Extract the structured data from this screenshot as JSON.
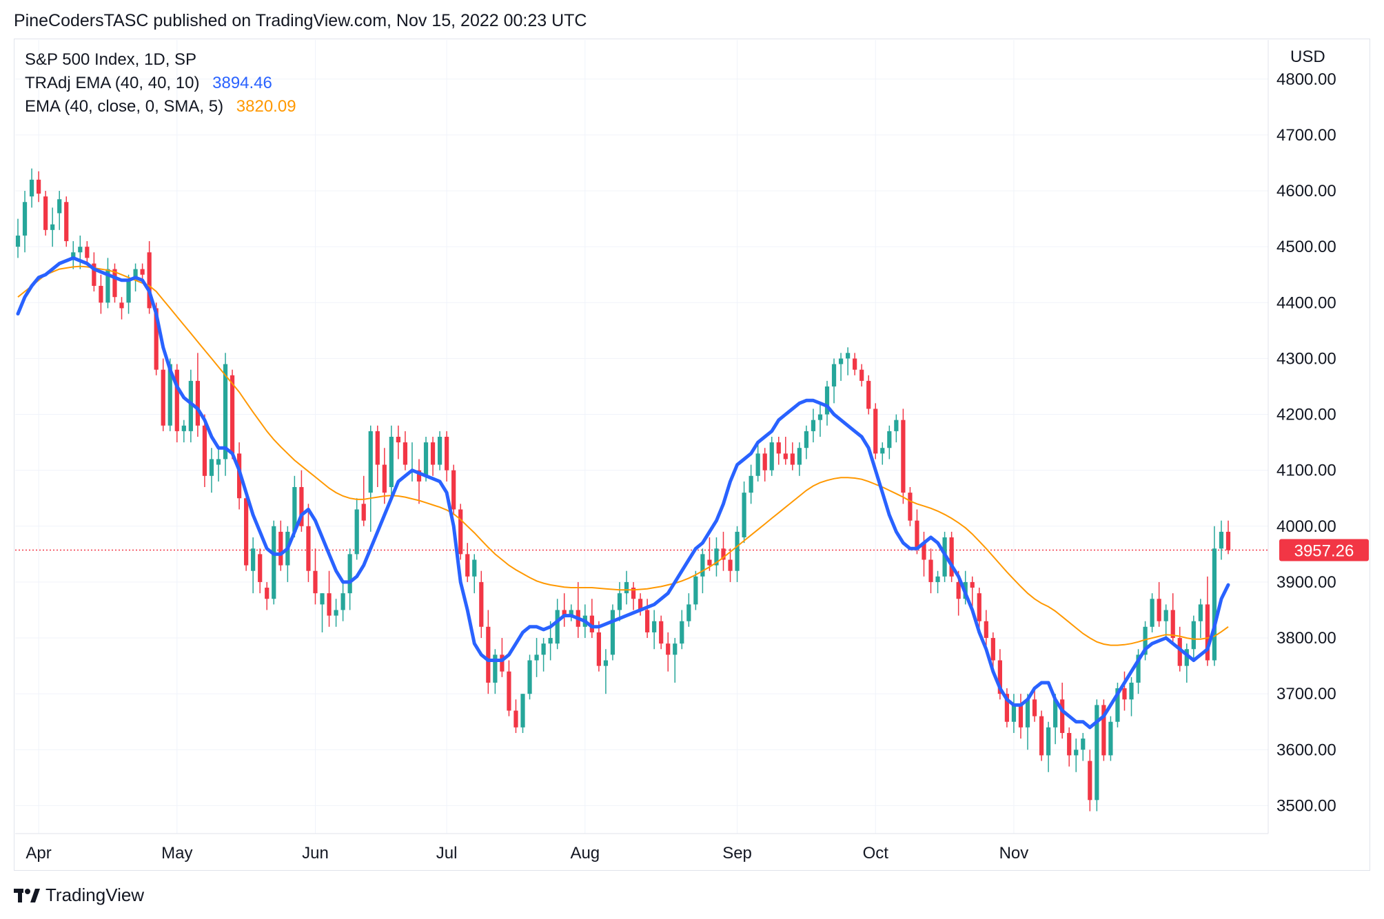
{
  "header": {
    "text": "PineCodersTASC published on TradingView.com, Nov 15, 2022 00:23 UTC"
  },
  "legend": {
    "symbol": "S&P 500 Index, 1D, SP",
    "indicator1_label": "TRAdj EMA (40, 40, 10)",
    "indicator1_value": "3894.46",
    "indicator2_label": "EMA (40, close, 0, SMA, 5)",
    "indicator2_value": "3820.09"
  },
  "footer": {
    "brand": "TradingView",
    "icon": "tradingview-logo-icon"
  },
  "colors": {
    "up": "#26a69a",
    "down": "#f23645",
    "tradj": "#2962ff",
    "ema": "#ff9800",
    "grid": "#f0f3fa",
    "text": "#131722",
    "price_line": "#f23645"
  },
  "chart_data": {
    "type": "candlestick",
    "currency": "USD",
    "ylim": [
      3450,
      4870
    ],
    "y_ticks": [
      "4800.00",
      "4700.00",
      "4600.00",
      "4500.00",
      "4400.00",
      "4300.00",
      "4200.00",
      "4100.00",
      "4000.00",
      "3900.00",
      "3800.00",
      "3700.00",
      "3600.00",
      "3500.00"
    ],
    "x_ticks": [
      {
        "label": "Apr",
        "index": 3
      },
      {
        "label": "May",
        "index": 23
      },
      {
        "label": "Jun",
        "index": 43
      },
      {
        "label": "Jul",
        "index": 62
      },
      {
        "label": "Aug",
        "index": 82
      },
      {
        "label": "Sep",
        "index": 104
      },
      {
        "label": "Oct",
        "index": 124
      },
      {
        "label": "Nov",
        "index": 144
      }
    ],
    "last_price": 3957.26,
    "last_price_label": "3957.26",
    "candles": [
      [
        4500,
        4550,
        4480,
        4520
      ],
      [
        4520,
        4600,
        4490,
        4580
      ],
      [
        4590,
        4640,
        4570,
        4620
      ],
      [
        4620,
        4635,
        4580,
        4595
      ],
      [
        4590,
        4600,
        4520,
        4530
      ],
      [
        4530,
        4570,
        4500,
        4540
      ],
      [
        4560,
        4600,
        4530,
        4585
      ],
      [
        4580,
        4590,
        4500,
        4510
      ],
      [
        4480,
        4510,
        4460,
        4490
      ],
      [
        4490,
        4520,
        4460,
        4500
      ],
      [
        4500,
        4510,
        4470,
        4480
      ],
      [
        4470,
        4490,
        4420,
        4430
      ],
      [
        4430,
        4450,
        4380,
        4400
      ],
      [
        4400,
        4480,
        4390,
        4460
      ],
      [
        4460,
        4470,
        4400,
        4410
      ],
      [
        4400,
        4410,
        4370,
        4390
      ],
      [
        4400,
        4450,
        4380,
        4440
      ],
      [
        4440,
        4470,
        4420,
        4460
      ],
      [
        4460,
        4470,
        4440,
        4450
      ],
      [
        4490,
        4510,
        4380,
        4390
      ],
      [
        4390,
        4400,
        4270,
        4280
      ],
      [
        4280,
        4300,
        4170,
        4180
      ],
      [
        4180,
        4300,
        4170,
        4290
      ],
      [
        4280,
        4290,
        4150,
        4170
      ],
      [
        4170,
        4190,
        4150,
        4180
      ],
      [
        4170,
        4280,
        4150,
        4260
      ],
      [
        4260,
        4310,
        4160,
        4180
      ],
      [
        4180,
        4200,
        4070,
        4090
      ],
      [
        4090,
        4140,
        4060,
        4120
      ],
      [
        4110,
        4140,
        4080,
        4120
      ],
      [
        4120,
        4310,
        4090,
        4290
      ],
      [
        4270,
        4280,
        4120,
        4130
      ],
      [
        4130,
        4150,
        4030,
        4050
      ],
      [
        4050,
        4060,
        3920,
        3930
      ],
      [
        3920,
        3980,
        3880,
        3960
      ],
      [
        3950,
        3960,
        3880,
        3900
      ],
      [
        3890,
        3900,
        3850,
        3870
      ],
      [
        3870,
        4010,
        3860,
        4000
      ],
      [
        3990,
        4010,
        3920,
        3930
      ],
      [
        3930,
        4000,
        3900,
        3990
      ],
      [
        3990,
        4090,
        3980,
        4070
      ],
      [
        4070,
        4100,
        3990,
        4000
      ],
      [
        4000,
        4040,
        3900,
        3920
      ],
      [
        3920,
        3960,
        3860,
        3880
      ],
      [
        3860,
        3880,
        3810,
        3880
      ],
      [
        3880,
        3920,
        3820,
        3840
      ],
      [
        3840,
        3870,
        3820,
        3850
      ],
      [
        3850,
        3900,
        3830,
        3880
      ],
      [
        3880,
        3960,
        3850,
        3950
      ],
      [
        3950,
        4050,
        3940,
        4030
      ],
      [
        4040,
        4090,
        4000,
        4010
      ],
      [
        4060,
        4180,
        3990,
        4170
      ],
      [
        4170,
        4180,
        4070,
        4110
      ],
      [
        4110,
        4140,
        4040,
        4060
      ],
      [
        4070,
        4180,
        4050,
        4160
      ],
      [
        4160,
        4180,
        4120,
        4150
      ],
      [
        4150,
        4170,
        4100,
        4110
      ],
      [
        4100,
        4150,
        4080,
        4100
      ],
      [
        4100,
        4120,
        4040,
        4080
      ],
      [
        4090,
        4160,
        4080,
        4150
      ],
      [
        4150,
        4160,
        4090,
        4110
      ],
      [
        4110,
        4170,
        4100,
        4160
      ],
      [
        4160,
        4170,
        4080,
        4100
      ],
      [
        4100,
        4110,
        4020,
        4030
      ],
      [
        4030,
        4040,
        3940,
        3950
      ],
      [
        3950,
        3970,
        3900,
        3910
      ],
      [
        3910,
        3950,
        3880,
        3940
      ],
      [
        3900,
        3920,
        3800,
        3820
      ],
      [
        3820,
        3850,
        3700,
        3720
      ],
      [
        3720,
        3780,
        3700,
        3770
      ],
      [
        3770,
        3800,
        3730,
        3740
      ],
      [
        3740,
        3760,
        3660,
        3670
      ],
      [
        3670,
        3690,
        3630,
        3640
      ],
      [
        3640,
        3700,
        3630,
        3700
      ],
      [
        3700,
        3770,
        3690,
        3760
      ],
      [
        3760,
        3800,
        3730,
        3770
      ],
      [
        3770,
        3800,
        3740,
        3790
      ],
      [
        3790,
        3830,
        3760,
        3800
      ],
      [
        3790,
        3870,
        3780,
        3850
      ],
      [
        3850,
        3880,
        3820,
        3840
      ],
      [
        3840,
        3860,
        3830,
        3850
      ],
      [
        3850,
        3900,
        3800,
        3820
      ],
      [
        3820,
        3860,
        3800,
        3840
      ],
      [
        3840,
        3870,
        3800,
        3810
      ],
      [
        3810,
        3830,
        3740,
        3750
      ],
      [
        3750,
        3780,
        3700,
        3760
      ],
      [
        3770,
        3860,
        3760,
        3850
      ],
      [
        3850,
        3900,
        3830,
        3880
      ],
      [
        3880,
        3920,
        3860,
        3900
      ],
      [
        3890,
        3900,
        3850,
        3870
      ],
      [
        3870,
        3880,
        3840,
        3850
      ],
      [
        3850,
        3870,
        3800,
        3810
      ],
      [
        3810,
        3850,
        3780,
        3830
      ],
      [
        3830,
        3840,
        3780,
        3790
      ],
      [
        3790,
        3810,
        3740,
        3770
      ],
      [
        3770,
        3800,
        3720,
        3790
      ],
      [
        3790,
        3850,
        3780,
        3830
      ],
      [
        3830,
        3880,
        3820,
        3860
      ],
      [
        3860,
        3920,
        3850,
        3910
      ],
      [
        3910,
        3960,
        3880,
        3950
      ],
      [
        3940,
        3980,
        3920,
        3930
      ],
      [
        3930,
        3980,
        3910,
        3960
      ],
      [
        3960,
        3990,
        3920,
        3940
      ],
      [
        3940,
        3960,
        3900,
        3920
      ],
      [
        3920,
        4000,
        3900,
        3990
      ],
      [
        3980,
        4080,
        3970,
        4060
      ],
      [
        4060,
        4110,
        4040,
        4090
      ],
      [
        4090,
        4150,
        4080,
        4130
      ],
      [
        4130,
        4140,
        4080,
        4100
      ],
      [
        4100,
        4160,
        4090,
        4150
      ],
      [
        4150,
        4160,
        4110,
        4130
      ],
      [
        4130,
        4160,
        4110,
        4120
      ],
      [
        4130,
        4150,
        4100,
        4110
      ],
      [
        4110,
        4150,
        4090,
        4140
      ],
      [
        4140,
        4180,
        4120,
        4170
      ],
      [
        4170,
        4210,
        4150,
        4190
      ],
      [
        4190,
        4220,
        4160,
        4200
      ],
      [
        4200,
        4260,
        4180,
        4250
      ],
      [
        4250,
        4300,
        4220,
        4290
      ],
      [
        4290,
        4310,
        4260,
        4300
      ],
      [
        4300,
        4320,
        4270,
        4310
      ],
      [
        4300,
        4310,
        4270,
        4280
      ],
      [
        4280,
        4290,
        4250,
        4260
      ],
      [
        4260,
        4270,
        4200,
        4210
      ],
      [
        4210,
        4220,
        4120,
        4130
      ],
      [
        4130,
        4150,
        4110,
        4140
      ],
      [
        4140,
        4180,
        4120,
        4170
      ],
      [
        4170,
        4200,
        4150,
        4190
      ],
      [
        4190,
        4210,
        4040,
        4060
      ],
      [
        4060,
        4070,
        4000,
        4010
      ],
      [
        4010,
        4030,
        3950,
        3960
      ],
      [
        3970,
        3990,
        3910,
        3940
      ],
      [
        3940,
        3960,
        3880,
        3900
      ],
      [
        3900,
        3920,
        3880,
        3910
      ],
      [
        3910,
        3990,
        3900,
        3980
      ],
      [
        3980,
        3990,
        3900,
        3910
      ],
      [
        3900,
        3920,
        3840,
        3870
      ],
      [
        3870,
        3920,
        3860,
        3900
      ],
      [
        3900,
        3910,
        3850,
        3890
      ],
      [
        3880,
        3890,
        3810,
        3830
      ],
      [
        3830,
        3850,
        3780,
        3800
      ],
      [
        3800,
        3810,
        3740,
        3760
      ],
      [
        3760,
        3780,
        3690,
        3700
      ],
      [
        3700,
        3710,
        3640,
        3650
      ],
      [
        3650,
        3700,
        3630,
        3680
      ],
      [
        3680,
        3700,
        3620,
        3640
      ],
      [
        3640,
        3700,
        3600,
        3690
      ],
      [
        3690,
        3710,
        3650,
        3660
      ],
      [
        3660,
        3670,
        3580,
        3590
      ],
      [
        3590,
        3650,
        3560,
        3640
      ],
      [
        3640,
        3700,
        3610,
        3690
      ],
      [
        3690,
        3720,
        3620,
        3630
      ],
      [
        3630,
        3640,
        3570,
        3590
      ],
      [
        3590,
        3620,
        3560,
        3600
      ],
      [
        3600,
        3630,
        3580,
        3620
      ],
      [
        3580,
        3600,
        3490,
        3510
      ],
      [
        3510,
        3690,
        3490,
        3680
      ],
      [
        3680,
        3690,
        3580,
        3590
      ],
      [
        3590,
        3660,
        3580,
        3650
      ],
      [
        3650,
        3720,
        3640,
        3710
      ],
      [
        3710,
        3740,
        3670,
        3690
      ],
      [
        3690,
        3730,
        3660,
        3720
      ],
      [
        3720,
        3780,
        3700,
        3770
      ],
      [
        3770,
        3830,
        3760,
        3820
      ],
      [
        3820,
        3880,
        3810,
        3870
      ],
      [
        3870,
        3900,
        3820,
        3830
      ],
      [
        3830,
        3860,
        3800,
        3850
      ],
      [
        3850,
        3880,
        3790,
        3800
      ],
      [
        3800,
        3820,
        3740,
        3750
      ],
      [
        3750,
        3790,
        3720,
        3780
      ],
      [
        3780,
        3840,
        3760,
        3830
      ],
      [
        3830,
        3870,
        3800,
        3860
      ],
      [
        3860,
        3910,
        3750,
        3760
      ],
      [
        3760,
        4000,
        3750,
        3960
      ],
      [
        3960,
        4010,
        3940,
        3990
      ],
      [
        3990,
        4010,
        3950,
        3957
      ]
    ],
    "tradj_ema": [
      4380,
      4410,
      4430,
      4445,
      4450,
      4460,
      4470,
      4475,
      4480,
      4475,
      4470,
      4460,
      4455,
      4450,
      4445,
      4440,
      4440,
      4445,
      4440,
      4420,
      4380,
      4320,
      4280,
      4250,
      4230,
      4220,
      4210,
      4190,
      4160,
      4140,
      4140,
      4130,
      4100,
      4060,
      4020,
      3990,
      3960,
      3950,
      3950,
      3960,
      3990,
      4020,
      4030,
      4010,
      3980,
      3950,
      3920,
      3900,
      3900,
      3910,
      3930,
      3960,
      3990,
      4020,
      4050,
      4080,
      4090,
      4100,
      4095,
      4090,
      4085,
      4080,
      4060,
      4000,
      3900,
      3850,
      3790,
      3770,
      3760,
      3760,
      3760,
      3770,
      3790,
      3810,
      3820,
      3820,
      3815,
      3820,
      3830,
      3840,
      3840,
      3835,
      3830,
      3820,
      3820,
      3825,
      3830,
      3835,
      3840,
      3845,
      3850,
      3855,
      3860,
      3870,
      3880,
      3900,
      3920,
      3940,
      3960,
      3970,
      3990,
      4010,
      4040,
      4080,
      4110,
      4120,
      4130,
      4150,
      4160,
      4170,
      4190,
      4200,
      4210,
      4220,
      4225,
      4225,
      4220,
      4215,
      4200,
      4190,
      4180,
      4170,
      4160,
      4140,
      4100,
      4060,
      4020,
      3990,
      3970,
      3960,
      3960,
      3970,
      3980,
      3970,
      3950,
      3930,
      3910,
      3880,
      3850,
      3810,
      3780,
      3740,
      3710,
      3690,
      3680,
      3680,
      3690,
      3710,
      3720,
      3720,
      3690,
      3670,
      3660,
      3650,
      3650,
      3640,
      3650,
      3660,
      3680,
      3700,
      3720,
      3740,
      3760,
      3780,
      3790,
      3795,
      3800,
      3790,
      3780,
      3770,
      3760,
      3770,
      3780,
      3820,
      3870,
      3895
    ],
    "ema": [
      4410,
      4420,
      4430,
      4440,
      4450,
      4455,
      4460,
      4462,
      4464,
      4465,
      4464,
      4462,
      4460,
      4458,
      4455,
      4450,
      4445,
      4440,
      4435,
      4430,
      4420,
      4405,
      4390,
      4375,
      4360,
      4345,
      4330,
      4315,
      4300,
      4285,
      4270,
      4255,
      4240,
      4222,
      4204,
      4187,
      4170,
      4155,
      4142,
      4130,
      4118,
      4108,
      4098,
      4088,
      4078,
      4068,
      4060,
      4054,
      4050,
      4048,
      4048,
      4050,
      4052,
      4054,
      4055,
      4054,
      4052,
      4049,
      4046,
      4042,
      4038,
      4034,
      4029,
      4022,
      4012,
      4000,
      3988,
      3975,
      3962,
      3950,
      3940,
      3930,
      3922,
      3915,
      3908,
      3902,
      3898,
      3895,
      3893,
      3891,
      3890,
      3890,
      3890,
      3890,
      3889,
      3888,
      3887,
      3886,
      3886,
      3886,
      3887,
      3888,
      3890,
      3892,
      3895,
      3898,
      3902,
      3907,
      3913,
      3920,
      3927,
      3935,
      3944,
      3954,
      3964,
      3974,
      3984,
      3994,
      4004,
      4014,
      4024,
      4034,
      4044,
      4054,
      4064,
      4072,
      4078,
      4082,
      4085,
      4087,
      4087,
      4086,
      4084,
      4080,
      4075,
      4070,
      4064,
      4058,
      4052,
      4045,
      4040,
      4036,
      4032,
      4027,
      4021,
      4014,
      4006,
      3997,
      3986,
      3973,
      3960,
      3946,
      3932,
      3918,
      3905,
      3892,
      3880,
      3870,
      3862,
      3856,
      3848,
      3838,
      3828,
      3818,
      3808,
      3800,
      3793,
      3789,
      3787,
      3787,
      3788,
      3790,
      3793,
      3797,
      3800,
      3803,
      3806,
      3805,
      3803,
      3800,
      3798,
      3798,
      3800,
      3803,
      3811,
      3820
    ]
  }
}
